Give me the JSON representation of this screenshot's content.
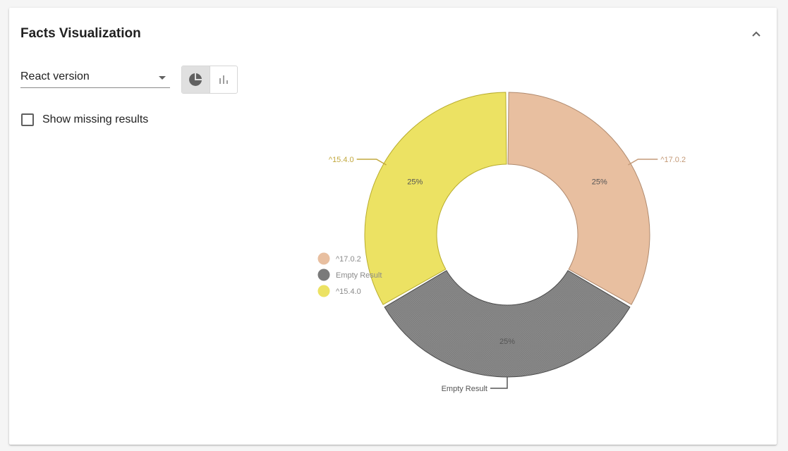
{
  "panel": {
    "title": "Facts Visualization"
  },
  "controls": {
    "select_value": "React version",
    "show_missing_label": "Show missing results",
    "show_missing_checked": false,
    "view_mode": "pie",
    "view_toggle_icons": [
      "pie-chart-icon",
      "bar-chart-icon"
    ]
  },
  "chart_data": {
    "type": "pie",
    "donut": true,
    "categories": [
      "^17.0.2",
      "Empty Result",
      "^15.4.0"
    ],
    "values": [
      25,
      25,
      25
    ],
    "percent_labels": [
      "25%",
      "25%",
      "25%"
    ],
    "colors": [
      "#e8bfa0",
      "#8c8c8c",
      "#ece263"
    ],
    "stroke_colors": [
      "#b08a6e",
      "#4a4a4a",
      "#b8ac2c"
    ],
    "label_colors": [
      "#c49a78",
      "#555555",
      "#c2a83e"
    ],
    "legend": {
      "placement": "left",
      "entries": [
        "^17.0.2",
        "Empty Result",
        "^15.4.0"
      ]
    }
  }
}
